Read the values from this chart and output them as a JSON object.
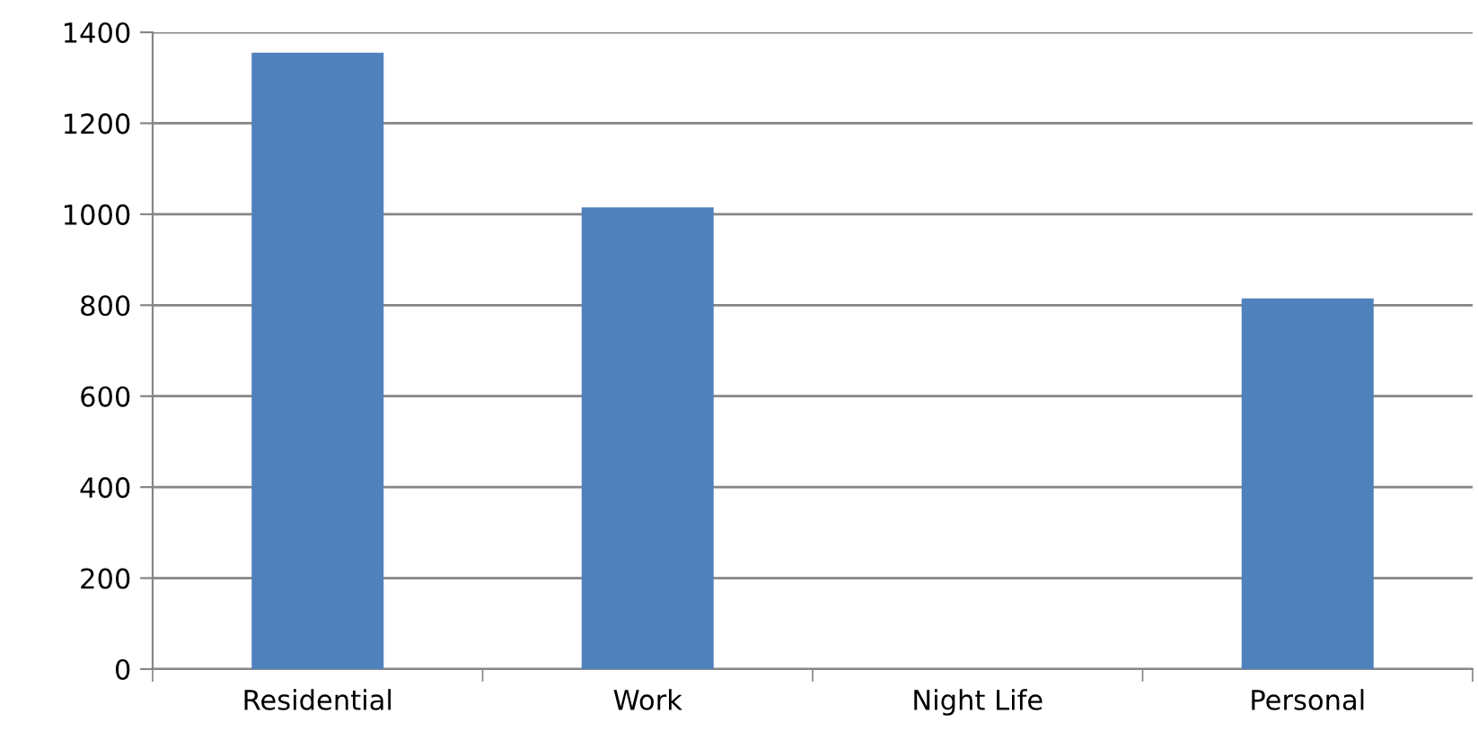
{
  "chart_data": {
    "type": "bar",
    "categories": [
      "Residential",
      "Work",
      "Night Life",
      "Personal"
    ],
    "values": [
      1355,
      1015,
      0,
      815
    ],
    "color": "#4f81bd",
    "ylim": [
      0,
      1400
    ],
    "yticks": [
      0,
      200,
      400,
      600,
      800,
      1000,
      1200,
      1400
    ],
    "grid": "y"
  }
}
